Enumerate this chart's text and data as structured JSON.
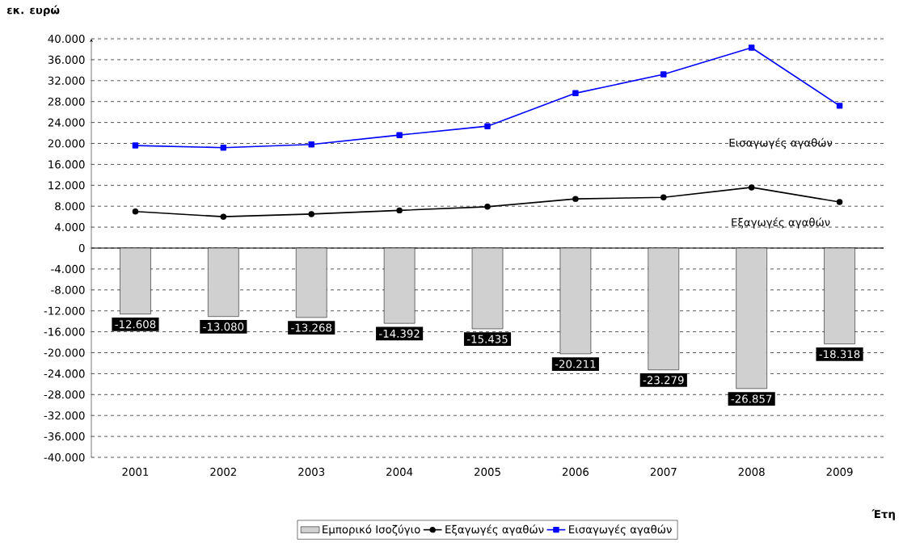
{
  "chart_data": {
    "type": "line",
    "ylabel": "**εκ. ευρώ**",
    "xlabel": "**Έτη**",
    "categories": [
      "2001",
      "2002",
      "2003",
      "2004",
      "2005",
      "2006",
      "2007",
      "2008",
      "2009"
    ],
    "series": [
      {
        "name": "Εμπορικό Ισοζύγιο",
        "type": "bar",
        "color": "#d0d0d0",
        "values": [
          -12608,
          -13080,
          -13268,
          -14392,
          -15435,
          -20211,
          -23279,
          -26857,
          -18318
        ],
        "value_labels": [
          "-12.608",
          "-13.080",
          "-13.268",
          "-14.392",
          "-15.435",
          "-20.211",
          "-23.279",
          "-26.857",
          "-18.318"
        ]
      },
      {
        "name": "Εξαγωγές αγαθών",
        "color": "#000000",
        "marker": "circle",
        "values": [
          7000,
          6000,
          6500,
          7200,
          7900,
          9400,
          9700,
          11600,
          8800
        ]
      },
      {
        "name": "Εισαγωγές αγαθών",
        "color": "#0000ff",
        "marker": "square",
        "values": [
          19600,
          19200,
          19800,
          21600,
          23300,
          29600,
          33200,
          38300,
          27200
        ]
      }
    ],
    "ylim": [
      -40000,
      40000
    ],
    "yticks": [
      {
        "value": 40000,
        "label": "40.000"
      },
      {
        "value": 36000,
        "label": "36.000"
      },
      {
        "value": 32000,
        "label": "32.000"
      },
      {
        "value": 28000,
        "label": "28.000"
      },
      {
        "value": 24000,
        "label": "24.000"
      },
      {
        "value": 20000,
        "label": "20.000"
      },
      {
        "value": 16000,
        "label": "16.000"
      },
      {
        "value": 12000,
        "label": "12.000"
      },
      {
        "value": 8000,
        "label": "8.000"
      },
      {
        "value": 4000,
        "label": "4.000"
      },
      0,
      {
        "value": -4000,
        "label": "-4.000"
      },
      {
        "value": -8000,
        "label": "-8.000"
      },
      {
        "value": -12000,
        "label": "-12.000"
      },
      {
        "value": -16000,
        "label": "-16.000"
      },
      {
        "value": -20000,
        "label": "-20.000"
      },
      {
        "value": -24000,
        "label": "-24.000"
      },
      {
        "value": -28000,
        "label": "-28.000"
      },
      {
        "value": -32000,
        "label": "-32.000"
      },
      {
        "value": -36000,
        "label": "-36.000"
      },
      {
        "value": -40000,
        "label": "-40.000"
      }
    ],
    "annotations": [
      "Εισαγωγές αγαθών",
      "Εξαγωγές αγαθών"
    ],
    "grid": "y",
    "legend": "bottom"
  }
}
